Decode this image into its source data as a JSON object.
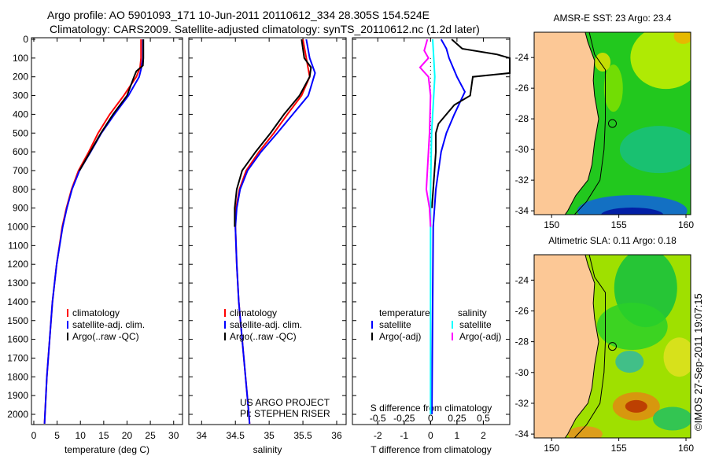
{
  "title": {
    "line1": "Argo profile: AO 5901093_171 10-Jun-2011 20110612_334 28.305S 154.524E",
    "line2": "Climatology: CARS2009. Satellite-adjusted climatology: synTS_20110612.nc (1.2d later)"
  },
  "credit": "©IMOS 27-Sep-2011 19:07:15",
  "project": {
    "line1": "US ARGO PROJECT",
    "line2": "PI: STEPHEN RISER"
  },
  "colors": {
    "climatology": "#ff0000",
    "satellite": "#0000ff",
    "argo": "#000000",
    "sal_sat": "#00ffff",
    "sal_argo": "#ff00ff",
    "land": "#fcc896"
  },
  "chart_data": [
    {
      "type": "line",
      "xlabel": "temperature (deg C)",
      "ylabel": "",
      "xlim": [
        -0.5,
        31.9
      ],
      "ylim": [
        2050,
        0
      ],
      "xticks": [
        0,
        5,
        10,
        15,
        20,
        25,
        30
      ],
      "yticks": [
        0,
        100,
        200,
        300,
        400,
        500,
        600,
        700,
        800,
        900,
        1000,
        1100,
        1200,
        1300,
        1400,
        1500,
        1600,
        1700,
        1800,
        1900,
        2000
      ],
      "legend": [
        "climatology",
        "satellite-adj. clim.",
        "Argo(..raw -QC)"
      ],
      "series": [
        {
          "name": "climatology",
          "color": "#ff0000",
          "depth": [
            0,
            100,
            150,
            200,
            300,
            400,
            500,
            600,
            700,
            800,
            900,
            1000,
            1200,
            1400,
            1600,
            1800,
            2000,
            2050
          ],
          "values": [
            23,
            23,
            22.8,
            22,
            19.3,
            16.3,
            13.8,
            11.8,
            9.6,
            8.1,
            7.0,
            6.1,
            4.9,
            4.0,
            3.4,
            2.8,
            2.4,
            2.3
          ]
        },
        {
          "name": "satellite-adj. clim.",
          "color": "#0000ff",
          "depth": [
            0,
            100,
            150,
            200,
            300,
            400,
            500,
            600,
            700,
            800,
            900,
            1000,
            1200,
            1400,
            1600,
            1800,
            2000,
            2050
          ],
          "values": [
            23.4,
            23.4,
            23.1,
            22.6,
            20.3,
            17.3,
            14.5,
            12.2,
            9.8,
            8.2,
            7.1,
            6.2,
            4.9,
            4.0,
            3.4,
            2.8,
            2.4,
            2.3
          ]
        },
        {
          "name": "Argo(..raw -QC)",
          "color": "#000000",
          "depth": [
            0,
            100,
            140,
            170,
            200,
            300,
            400,
            500,
            600,
            700
          ],
          "values": [
            23.5,
            23.5,
            23.4,
            22,
            21.5,
            20.0,
            17.0,
            14.4,
            12.1,
            9.8
          ]
        }
      ]
    },
    {
      "type": "line",
      "xlabel": "salinity",
      "xlim": [
        33.81,
        36.14
      ],
      "ylim": [
        2050,
        0
      ],
      "xticks": [
        34,
        34.5,
        35,
        35.5,
        36
      ],
      "legend": [
        "climatology",
        "satellite-adj. clim.",
        "Argo(..raw -QC)"
      ],
      "series": [
        {
          "name": "climatology",
          "color": "#ff0000",
          "depth": [
            0,
            100,
            200,
            300,
            400,
            500,
            600,
            700,
            800,
            900,
            1000,
            1200,
            1400,
            1600,
            1800,
            2000,
            2050
          ],
          "values": [
            35.5,
            35.55,
            35.6,
            35.48,
            35.27,
            35.07,
            34.85,
            34.66,
            34.56,
            34.51,
            34.5,
            34.52,
            34.55,
            34.6,
            34.65,
            34.7,
            34.71
          ]
        },
        {
          "name": "satellite-adj. clim.",
          "color": "#0000ff",
          "depth": [
            0,
            100,
            180,
            300,
            400,
            500,
            600,
            700,
            800,
            900,
            1000,
            1200,
            1400,
            1600,
            1800,
            2000,
            2050
          ],
          "values": [
            35.55,
            35.6,
            35.68,
            35.58,
            35.35,
            35.12,
            34.88,
            34.68,
            34.57,
            34.52,
            34.5,
            34.52,
            34.55,
            34.6,
            34.65,
            34.7,
            34.71
          ]
        },
        {
          "name": "Argo(..raw -QC)",
          "color": "#000000",
          "depth": [
            0,
            100,
            150,
            200,
            300,
            400,
            500,
            600,
            700,
            800,
            900,
            1000
          ],
          "values": [
            35.48,
            35.52,
            35.62,
            35.6,
            35.45,
            35.22,
            35.02,
            34.8,
            34.6,
            34.52,
            34.49,
            34.49
          ]
        }
      ]
    },
    {
      "type": "line",
      "xlabel": "T difference from climatology",
      "xlabel2": "S difference from climatology",
      "xlim": [
        -2.96,
        3.0
      ],
      "ylim": [
        2050,
        0
      ],
      "xticks": [
        -2,
        -1,
        0,
        1,
        2
      ],
      "xticks2": [
        -0.5,
        -0.25,
        0,
        0.25,
        0.5
      ],
      "legend_titles": [
        "temperature",
        "salinity"
      ],
      "legend": [
        "satellite",
        "Argo(-adj)",
        "satellite",
        "Argo(-adj)"
      ],
      "series": [
        {
          "name": "T satellite",
          "color": "#0000ff",
          "depth": [
            0,
            50,
            100,
            200,
            280,
            400,
            500,
            600,
            800,
            1000,
            1400,
            2000
          ],
          "values": [
            0.4,
            0.6,
            0.7,
            1.0,
            1.3,
            0.9,
            0.6,
            0.4,
            0.2,
            0.1,
            0.08,
            0.05
          ]
        },
        {
          "name": "T Argo(-adj)",
          "color": "#000000",
          "depth": [
            0,
            50,
            80,
            100,
            180,
            200,
            300,
            350,
            400,
            450,
            500,
            600,
            800,
            900
          ],
          "values": [
            0.8,
            1.2,
            2.5,
            3.0,
            3.0,
            1.6,
            1.5,
            0.9,
            0.6,
            0.3,
            0.2,
            0.2,
            0.1,
            0.05
          ]
        },
        {
          "name": "S satellite",
          "color": "#00ffff",
          "scale": "S",
          "depth": [
            0,
            100,
            200,
            300,
            500,
            800,
            1000,
            2000
          ],
          "values": [
            0.02,
            0.03,
            0.04,
            0.03,
            0.01,
            0.0,
            0.0,
            0.0
          ]
        },
        {
          "name": "S Argo(-adj)",
          "color": "#ff00ff",
          "scale": "S",
          "depth": [
            0,
            60,
            100,
            150,
            200,
            300,
            500,
            700,
            800,
            900,
            1000
          ],
          "values": [
            -0.03,
            -0.06,
            -0.02,
            -0.1,
            -0.02,
            0.0,
            -0.01,
            -0.03,
            -0.04,
            -0.01,
            0.0
          ]
        }
      ]
    }
  ],
  "maps": [
    {
      "title": "AMSR-E SST: 23 Argo: 23.4",
      "xticks": [
        150,
        155,
        160
      ],
      "yticks": [
        -24,
        -26,
        -28,
        -30,
        -32,
        -34
      ],
      "float": [
        154.524,
        -28.305
      ]
    },
    {
      "title": "Altimetric SLA: 0.11 Argo: 0.18",
      "xticks": [
        150,
        155,
        160
      ],
      "yticks": [
        -24,
        -26,
        -28,
        -30,
        -32,
        -34
      ],
      "float": [
        154.524,
        -28.305
      ]
    }
  ]
}
